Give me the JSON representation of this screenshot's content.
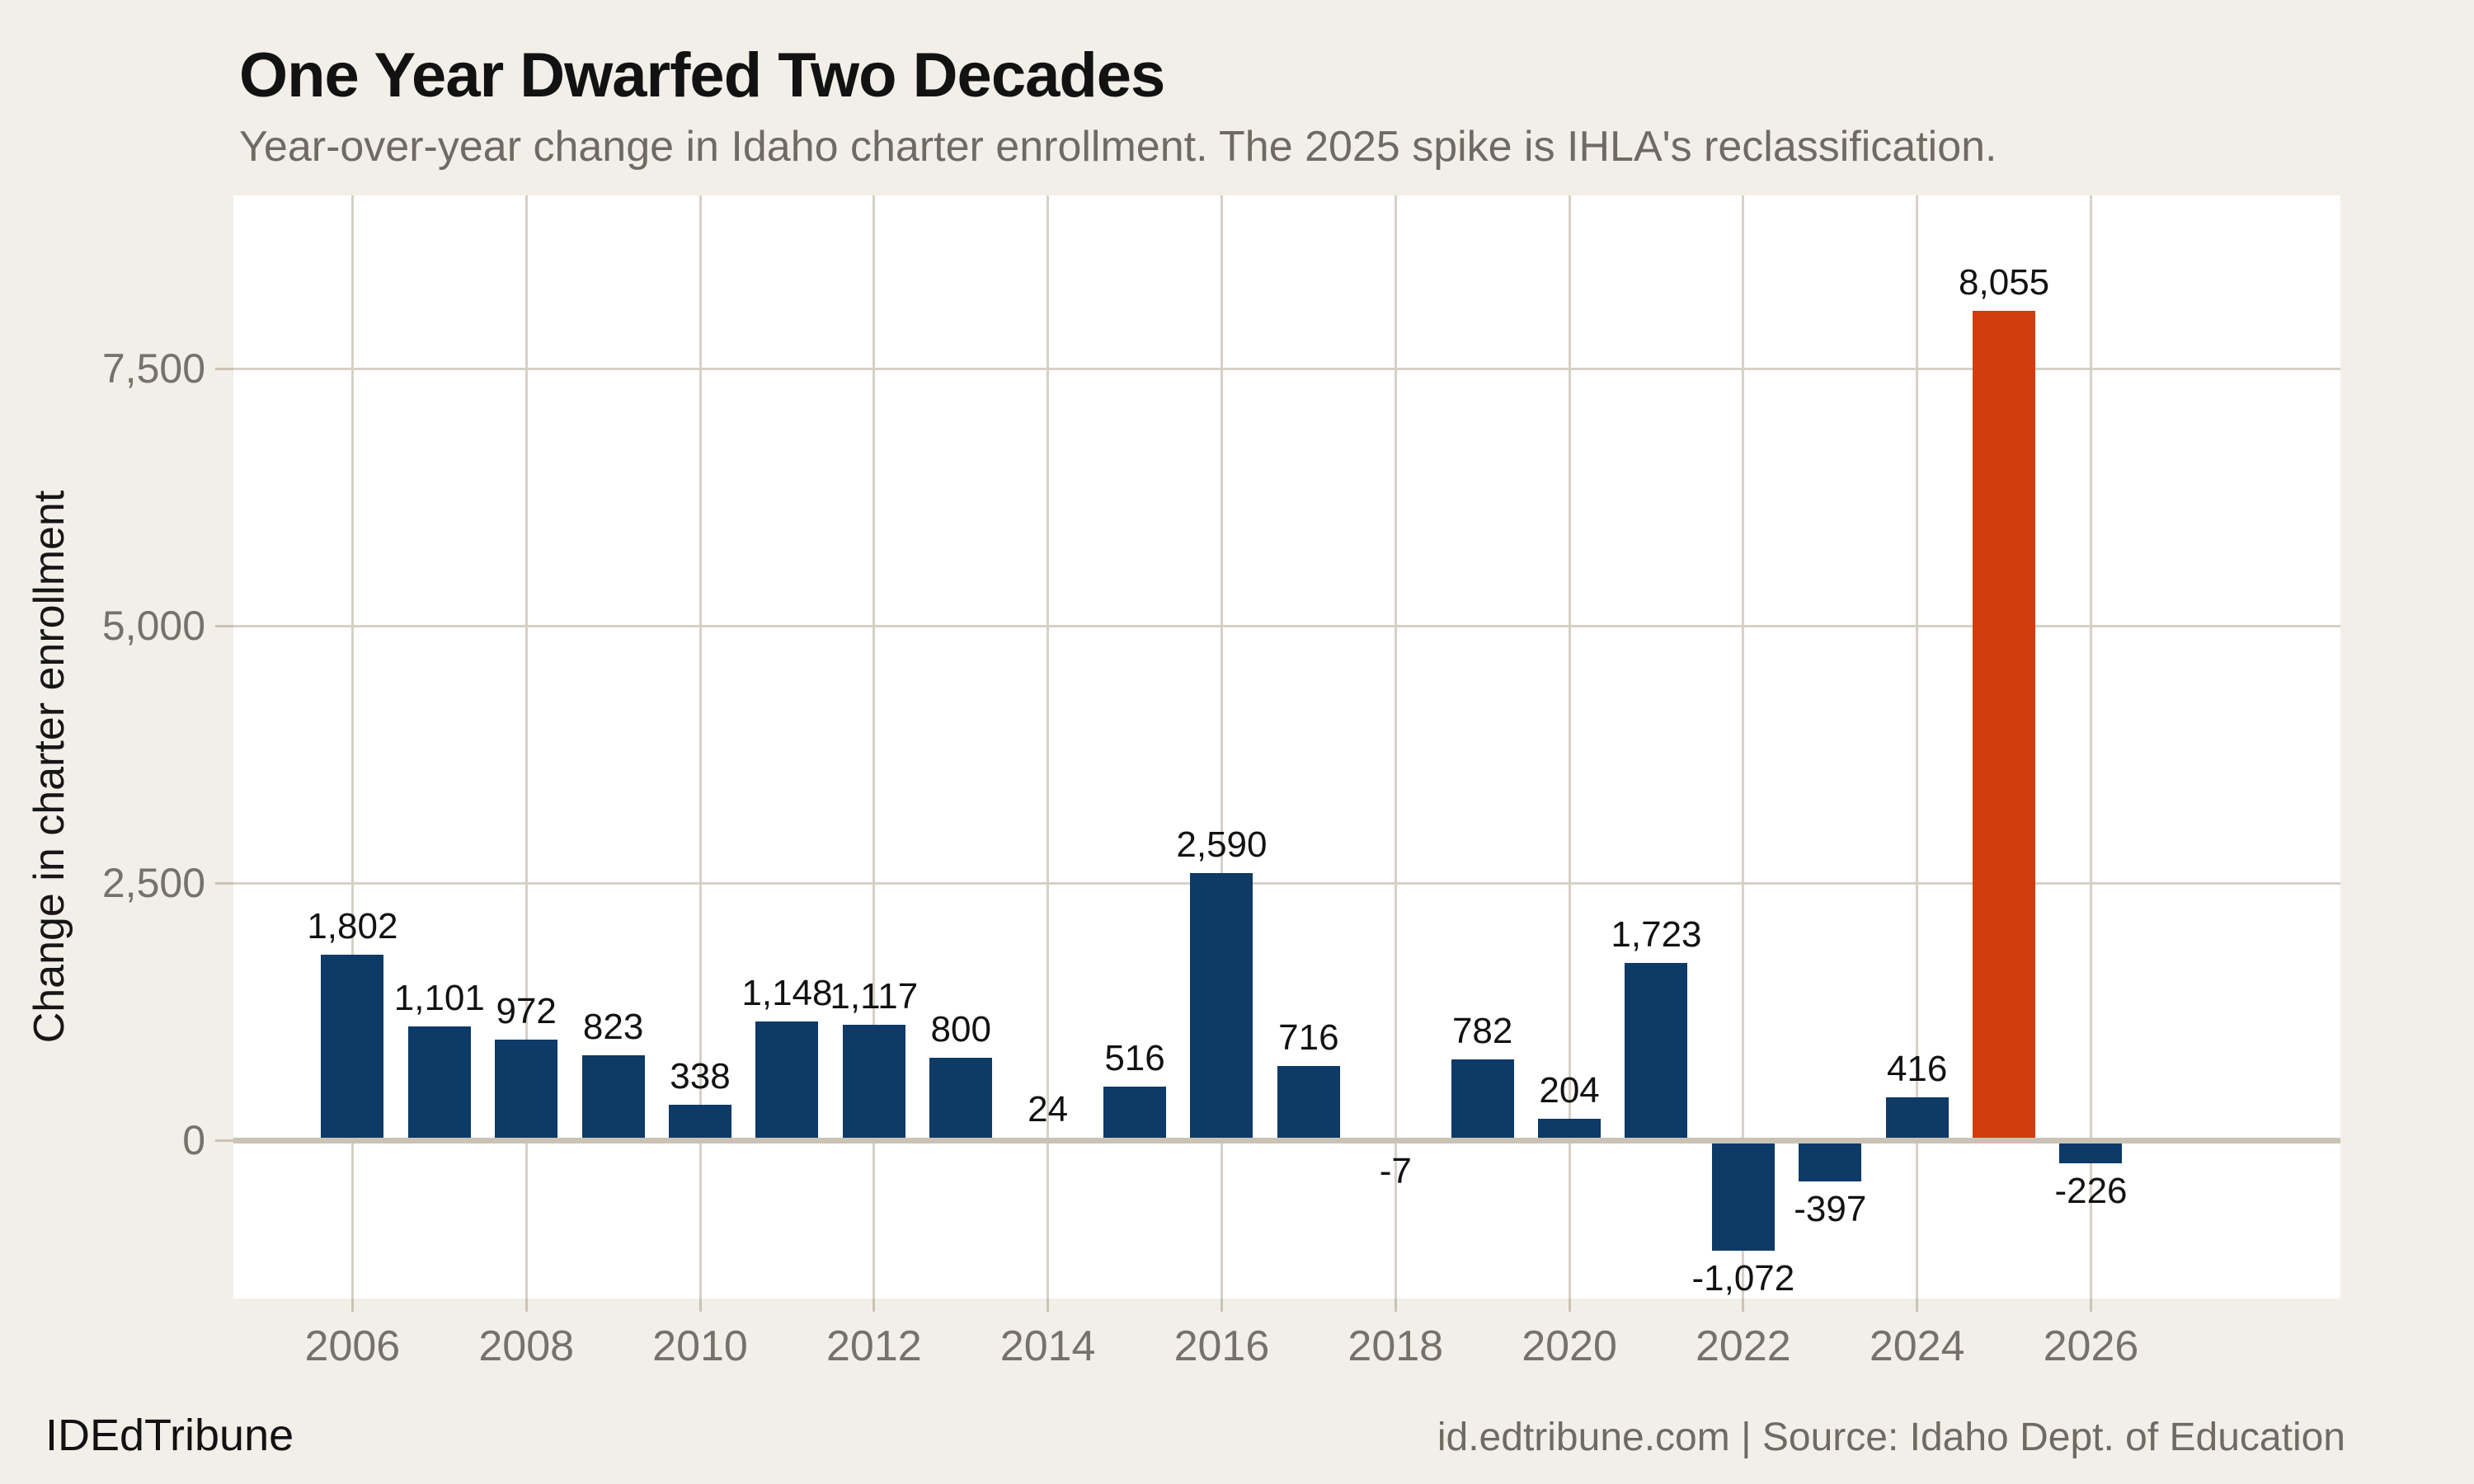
{
  "footer": {
    "brand": "IDEdTribune",
    "source": "id.edtribune.com | Source: Idaho Dept. of Education"
  },
  "colors": {
    "background": "#f2efe9",
    "panel": "#ffffff",
    "grid": "#d6d1c7",
    "zero_line": "#cac3b5",
    "bar_navy": "#0d3a66",
    "bar_highlight_orange": "#d23d0e",
    "text_dark": "#121212",
    "text_gray": "#6f6b64",
    "tick_label_gray": "#76726b"
  },
  "chart_data": {
    "type": "bar",
    "title": "One Year Dwarfed Two Decades",
    "subtitle": "Year-over-year change in Idaho charter enrollment. The 2025 spike is IHLA's reclassification.",
    "xlabel": "",
    "ylabel": "Change in charter enrollment",
    "x": [
      2006,
      2007,
      2008,
      2009,
      2010,
      2011,
      2012,
      2013,
      2014,
      2015,
      2016,
      2017,
      2018,
      2019,
      2020,
      2021,
      2022,
      2023,
      2024,
      2025,
      2026
    ],
    "values": [
      1802,
      1101,
      972,
      823,
      338,
      1148,
      1117,
      800,
      24,
      516,
      2590,
      716,
      -7,
      782,
      204,
      1723,
      -1072,
      -397,
      416,
      8055,
      -226
    ],
    "labels": [
      "1,802",
      "1,101",
      "972",
      "823",
      "338",
      "1,148",
      "1,117",
      "800",
      "24",
      "516",
      "2,590",
      "716",
      "-7",
      "782",
      "204",
      "1,723",
      "-1,072",
      "-397",
      "416",
      "8,055",
      "-226"
    ],
    "highlight_x": 2025,
    "highlight_note": "The 2025 spike is IHLA's reclassification.",
    "colors": {
      "bar": "#0d3a66",
      "highlight": "#d23d0e"
    },
    "yticks": [
      {
        "value": 0,
        "label": "0"
      },
      {
        "value": 2500,
        "label": "2,500"
      },
      {
        "value": 5000,
        "label": "5,000"
      },
      {
        "value": 7500,
        "label": "7,500"
      }
    ],
    "xticks": [
      {
        "value": 2006,
        "label": "2006"
      },
      {
        "value": 2008,
        "label": "2008"
      },
      {
        "value": 2010,
        "label": "2010"
      },
      {
        "value": 2012,
        "label": "2012"
      },
      {
        "value": 2014,
        "label": "2014"
      },
      {
        "value": 2016,
        "label": "2016"
      },
      {
        "value": 2018,
        "label": "2018"
      },
      {
        "value": 2020,
        "label": "2020"
      },
      {
        "value": 2022,
        "label": "2022"
      },
      {
        "value": 2024,
        "label": "2024"
      },
      {
        "value": 2026,
        "label": "2026"
      }
    ],
    "ylim": [
      -1538,
      9183
    ],
    "xlim": [
      2004.63,
      2028.87
    ],
    "grid": true,
    "legend": "none"
  }
}
